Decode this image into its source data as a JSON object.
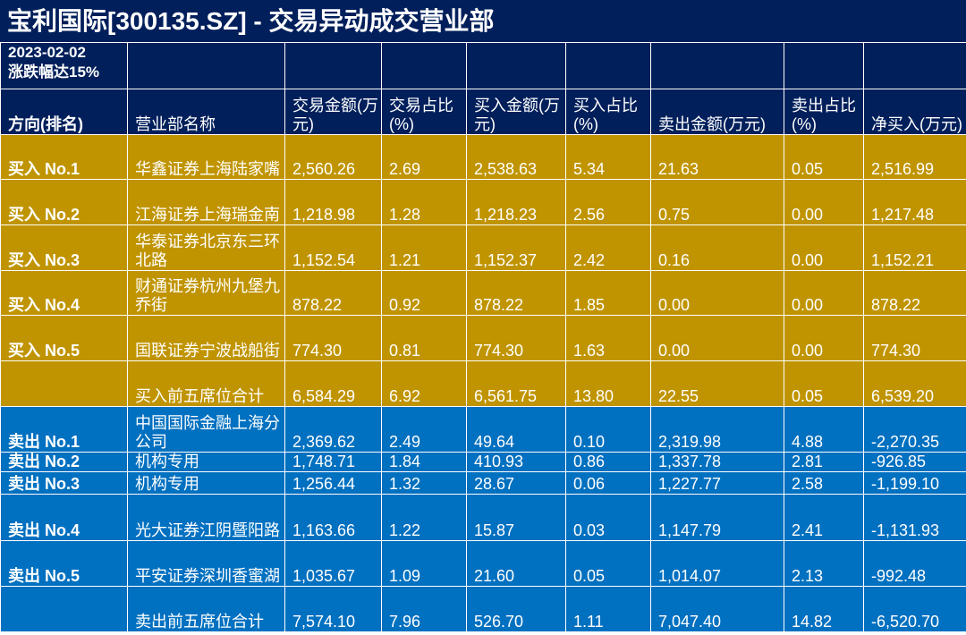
{
  "title": "宝利国际[300135.SZ] - 交易异动成交营业部",
  "meta": {
    "date": "2023-02-02",
    "reason": "涨跌幅达15%"
  },
  "columns": [
    "方向(排名)",
    "营业部名称",
    "交易金额(万元)",
    "交易占比(%)",
    "买入金额(万元)",
    "买入占比(%)",
    "卖出金额(万元)",
    "卖出占比(%)",
    "净买入(万元)"
  ],
  "buy_rows": [
    {
      "dir": "买入 No.1",
      "name": "华鑫证券上海陆家嘴",
      "amount": "2,560.26",
      "ratio": "2.69",
      "buy": "2,538.63",
      "buy_ratio": "5.34",
      "sell": "21.63",
      "sell_ratio": "0.05",
      "net": "2,516.99"
    },
    {
      "dir": "买入 No.2",
      "name": "江海证券上海瑞金南",
      "amount": "1,218.98",
      "ratio": "1.28",
      "buy": "1,218.23",
      "buy_ratio": "2.56",
      "sell": "0.75",
      "sell_ratio": "0.00",
      "net": "1,217.48"
    },
    {
      "dir": "买入 No.3",
      "name": "华泰证券北京东三环北路",
      "amount": "1,152.54",
      "ratio": "1.21",
      "buy": "1,152.37",
      "buy_ratio": "2.42",
      "sell": "0.16",
      "sell_ratio": "0.00",
      "net": "1,152.21"
    },
    {
      "dir": "买入 No.4",
      "name": "财通证券杭州九堡九乔街",
      "amount": "878.22",
      "ratio": "0.92",
      "buy": "878.22",
      "buy_ratio": "1.85",
      "sell": "0.00",
      "sell_ratio": "0.00",
      "net": "878.22"
    },
    {
      "dir": "买入 No.5",
      "name": "国联证券宁波战船街",
      "amount": "774.30",
      "ratio": "0.81",
      "buy": "774.30",
      "buy_ratio": "1.63",
      "sell": "0.00",
      "sell_ratio": "0.00",
      "net": "774.30"
    },
    {
      "dir": "",
      "name": "买入前五席位合计",
      "amount": "6,584.29",
      "ratio": "6.92",
      "buy": "6,561.75",
      "buy_ratio": "13.80",
      "sell": "22.55",
      "sell_ratio": "0.05",
      "net": "6,539.20"
    }
  ],
  "sell_rows": [
    {
      "dir": "卖出 No.1",
      "name": "中国国际金融上海分公司",
      "amount": "2,369.62",
      "ratio": "2.49",
      "buy": "49.64",
      "buy_ratio": "0.10",
      "sell": "2,319.98",
      "sell_ratio": "4.88",
      "net": "-2,270.35"
    },
    {
      "dir": "卖出 No.2",
      "name": "机构专用",
      "amount": "1,748.71",
      "ratio": "1.84",
      "buy": "410.93",
      "buy_ratio": "0.86",
      "sell": "1,337.78",
      "sell_ratio": "2.81",
      "net": "-926.85"
    },
    {
      "dir": "卖出 No.3",
      "name": "机构专用",
      "amount": "1,256.44",
      "ratio": "1.32",
      "buy": "28.67",
      "buy_ratio": "0.06",
      "sell": "1,227.77",
      "sell_ratio": "2.58",
      "net": "-1,199.10"
    },
    {
      "dir": "卖出 No.4",
      "name": "光大证券江阴暨阳路",
      "amount": "1,163.66",
      "ratio": "1.22",
      "buy": "15.87",
      "buy_ratio": "0.03",
      "sell": "1,147.79",
      "sell_ratio": "2.41",
      "net": "-1,131.93"
    },
    {
      "dir": "卖出 No.5",
      "name": "平安证券深圳香蜜湖",
      "amount": "1,035.67",
      "ratio": "1.09",
      "buy": "21.60",
      "buy_ratio": "0.05",
      "sell": "1,014.07",
      "sell_ratio": "2.13",
      "net": "-992.48"
    },
    {
      "dir": "",
      "name": "卖出前五席位合计",
      "amount": "7,574.10",
      "ratio": "7.96",
      "buy": "526.70",
      "buy_ratio": "1.11",
      "sell": "7,047.40",
      "sell_ratio": "14.82",
      "net": "-6,520.70"
    }
  ],
  "colors": {
    "title_bg": "#001f5b",
    "buy_bg": "#c09400",
    "sell_bg": "#0070c0",
    "text": "#ffffff"
  }
}
